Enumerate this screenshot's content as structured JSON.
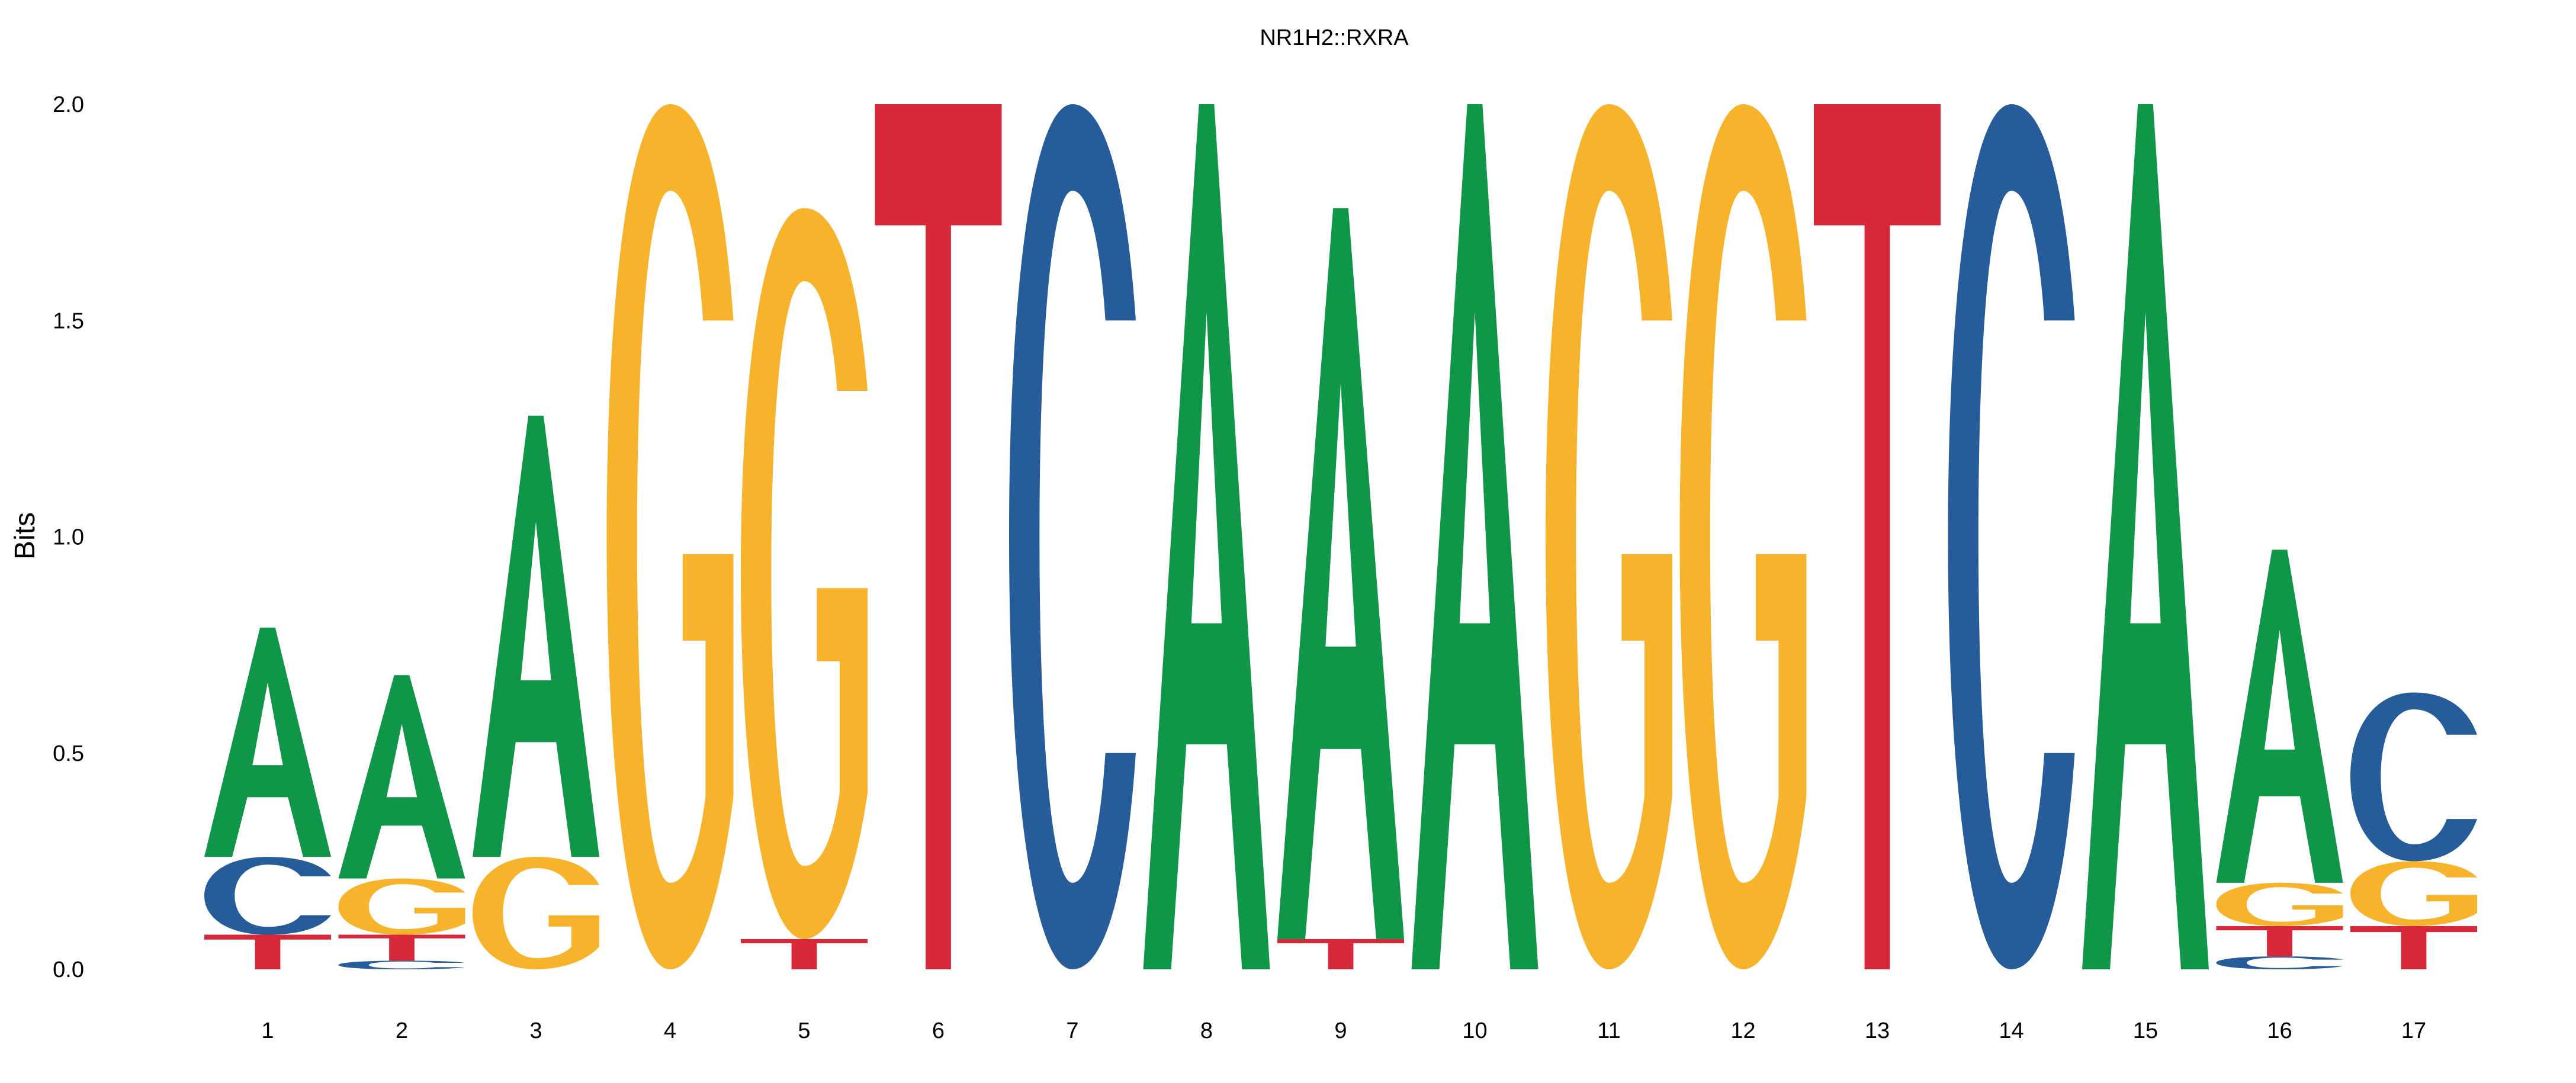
{
  "chart_data": {
    "type": "sequence-logo",
    "title": "NR1H2::RXRA",
    "xlabel": "",
    "ylabel": "Bits",
    "ylim": [
      0,
      2.0
    ],
    "yticks": [
      "0.0",
      "0.5",
      "1.0",
      "1.5",
      "2.0"
    ],
    "ytick_values": [
      0,
      0.5,
      1.0,
      1.5,
      2.0
    ],
    "grid": false,
    "legend": "none",
    "colors": {
      "A": "#109648",
      "C": "#255C99",
      "G": "#F7B32B",
      "T": "#D62839"
    },
    "positions": [
      {
        "label": "1",
        "stack": [
          {
            "base": "T",
            "bits": 0.08
          },
          {
            "base": "C",
            "bits": 0.18
          },
          {
            "base": "A",
            "bits": 0.53
          }
        ]
      },
      {
        "label": "2",
        "stack": [
          {
            "base": "C",
            "bits": 0.02
          },
          {
            "base": "T",
            "bits": 0.06
          },
          {
            "base": "G",
            "bits": 0.13
          },
          {
            "base": "A",
            "bits": 0.47
          }
        ]
      },
      {
        "label": "3",
        "stack": [
          {
            "base": "G",
            "bits": 0.26
          },
          {
            "base": "A",
            "bits": 1.02
          }
        ]
      },
      {
        "label": "4",
        "stack": [
          {
            "base": "G",
            "bits": 2.0
          }
        ]
      },
      {
        "label": "5",
        "stack": [
          {
            "base": "T",
            "bits": 0.07
          },
          {
            "base": "G",
            "bits": 1.69
          }
        ]
      },
      {
        "label": "6",
        "stack": [
          {
            "base": "T",
            "bits": 2.0
          }
        ]
      },
      {
        "label": "7",
        "stack": [
          {
            "base": "C",
            "bits": 2.0
          }
        ]
      },
      {
        "label": "8",
        "stack": [
          {
            "base": "A",
            "bits": 2.0
          }
        ]
      },
      {
        "label": "9",
        "stack": [
          {
            "base": "T",
            "bits": 0.07
          },
          {
            "base": "A",
            "bits": 1.69
          }
        ]
      },
      {
        "label": "10",
        "stack": [
          {
            "base": "A",
            "bits": 2.0
          }
        ]
      },
      {
        "label": "11",
        "stack": [
          {
            "base": "G",
            "bits": 2.0
          }
        ]
      },
      {
        "label": "12",
        "stack": [
          {
            "base": "G",
            "bits": 2.0
          }
        ]
      },
      {
        "label": "13",
        "stack": [
          {
            "base": "T",
            "bits": 2.0
          }
        ]
      },
      {
        "label": "14",
        "stack": [
          {
            "base": "C",
            "bits": 2.0
          }
        ]
      },
      {
        "label": "15",
        "stack": [
          {
            "base": "A",
            "bits": 2.0
          }
        ]
      },
      {
        "label": "16",
        "stack": [
          {
            "base": "C",
            "bits": 0.03
          },
          {
            "base": "T",
            "bits": 0.07
          },
          {
            "base": "G",
            "bits": 0.1
          },
          {
            "base": "A",
            "bits": 0.77
          }
        ]
      },
      {
        "label": "17",
        "stack": [
          {
            "base": "T",
            "bits": 0.1
          },
          {
            "base": "G",
            "bits": 0.15
          },
          {
            "base": "C",
            "bits": 0.39
          }
        ]
      }
    ]
  }
}
